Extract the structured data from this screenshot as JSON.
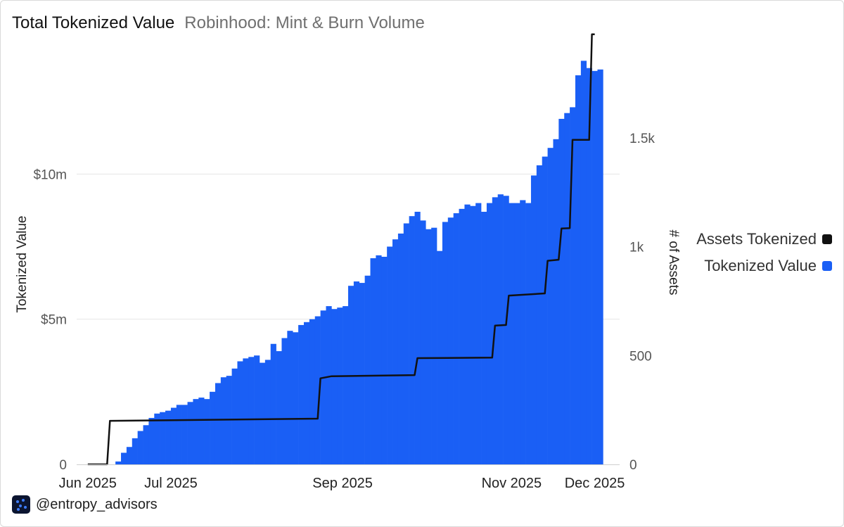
{
  "header": {
    "title": "Total Tokenized Value",
    "subtitle": "Robinhood: Mint & Burn Volume"
  },
  "legend": [
    {
      "label": "Assets Tokenized",
      "color": "#111111"
    },
    {
      "label": "Tokenized Value",
      "color": "#1a5ff5"
    }
  ],
  "footer": {
    "handle": "@entropy_advisors",
    "icon": "entropy-logo-icon"
  },
  "chart_data": {
    "type": "bar",
    "title": "Total Tokenized Value",
    "subtitle": "Robinhood: Mint & Burn Volume",
    "ylabel": "Tokenized Value",
    "y2label": "# of Assets",
    "ylim": [
      0,
      15000000
    ],
    "y2lim": [
      0,
      2000
    ],
    "yticks": [
      {
        "value": 0,
        "label": "0"
      },
      {
        "value": 5000000,
        "label": "$5m"
      },
      {
        "value": 10000000,
        "label": "$10m"
      }
    ],
    "y2ticks": [
      {
        "value": 0,
        "label": "0"
      },
      {
        "value": 500,
        "label": "500"
      },
      {
        "value": 1000,
        "label": "1k"
      },
      {
        "value": 1500,
        "label": "1.5k"
      }
    ],
    "xrange": [
      "2025-05-28",
      "2025-12-10"
    ],
    "xticks": [
      {
        "date": "2025-06-01",
        "label": "Jun 2025"
      },
      {
        "date": "2025-07-01",
        "label": "Jul 2025"
      },
      {
        "date": "2025-09-01",
        "label": "Sep 2025"
      },
      {
        "date": "2025-11-01",
        "label": "Nov 2025"
      },
      {
        "date": "2025-12-01",
        "label": "Dec 2025"
      }
    ],
    "grid": true,
    "legend_position": "right",
    "series": [
      {
        "name": "Tokenized Value",
        "kind": "bar",
        "axis": "left",
        "color": "#1a5ff5",
        "points": [
          [
            "2025-06-12",
            100000
          ],
          [
            "2025-06-14",
            400000
          ],
          [
            "2025-06-16",
            600000
          ],
          [
            "2025-06-18",
            900000
          ],
          [
            "2025-06-20",
            1150000
          ],
          [
            "2025-06-22",
            1350000
          ],
          [
            "2025-06-24",
            1600000
          ],
          [
            "2025-06-26",
            1750000
          ],
          [
            "2025-06-28",
            1800000
          ],
          [
            "2025-06-30",
            1850000
          ],
          [
            "2025-07-02",
            1950000
          ],
          [
            "2025-07-04",
            2050000
          ],
          [
            "2025-07-06",
            2050000
          ],
          [
            "2025-07-08",
            2150000
          ],
          [
            "2025-07-10",
            2250000
          ],
          [
            "2025-07-12",
            2300000
          ],
          [
            "2025-07-14",
            2250000
          ],
          [
            "2025-07-16",
            2500000
          ],
          [
            "2025-07-18",
            2800000
          ],
          [
            "2025-07-20",
            3000000
          ],
          [
            "2025-07-22",
            3050000
          ],
          [
            "2025-07-24",
            3300000
          ],
          [
            "2025-07-26",
            3550000
          ],
          [
            "2025-07-28",
            3650000
          ],
          [
            "2025-07-30",
            3700000
          ],
          [
            "2025-08-01",
            3750000
          ],
          [
            "2025-08-03",
            3500000
          ],
          [
            "2025-08-05",
            3600000
          ],
          [
            "2025-08-07",
            4150000
          ],
          [
            "2025-08-09",
            3900000
          ],
          [
            "2025-08-11",
            4350000
          ],
          [
            "2025-08-13",
            4600000
          ],
          [
            "2025-08-15",
            4550000
          ],
          [
            "2025-08-17",
            4800000
          ],
          [
            "2025-08-19",
            4900000
          ],
          [
            "2025-08-21",
            5000000
          ],
          [
            "2025-08-23",
            5100000
          ],
          [
            "2025-08-25",
            5300000
          ],
          [
            "2025-08-27",
            5450000
          ],
          [
            "2025-08-29",
            5350000
          ],
          [
            "2025-08-31",
            5400000
          ],
          [
            "2025-09-02",
            5450000
          ],
          [
            "2025-09-04",
            6150000
          ],
          [
            "2025-09-06",
            6300000
          ],
          [
            "2025-09-08",
            6250000
          ],
          [
            "2025-09-10",
            6500000
          ],
          [
            "2025-09-12",
            7100000
          ],
          [
            "2025-09-14",
            7200000
          ],
          [
            "2025-09-16",
            7150000
          ],
          [
            "2025-09-18",
            7500000
          ],
          [
            "2025-09-20",
            7750000
          ],
          [
            "2025-09-22",
            7950000
          ],
          [
            "2025-09-24",
            8300000
          ],
          [
            "2025-09-26",
            8550000
          ],
          [
            "2025-09-28",
            8700000
          ],
          [
            "2025-09-30",
            8400000
          ],
          [
            "2025-10-02",
            8100000
          ],
          [
            "2025-10-04",
            8150000
          ],
          [
            "2025-10-06",
            7350000
          ],
          [
            "2025-10-08",
            8350000
          ],
          [
            "2025-10-10",
            8500000
          ],
          [
            "2025-10-12",
            8650000
          ],
          [
            "2025-10-14",
            8800000
          ],
          [
            "2025-10-16",
            8950000
          ],
          [
            "2025-10-18",
            8900000
          ],
          [
            "2025-10-20",
            9000000
          ],
          [
            "2025-10-22",
            8700000
          ],
          [
            "2025-10-24",
            9000000
          ],
          [
            "2025-10-26",
            9200000
          ],
          [
            "2025-10-28",
            9300000
          ],
          [
            "2025-10-30",
            9250000
          ],
          [
            "2025-11-01",
            9000000
          ],
          [
            "2025-11-03",
            9000000
          ],
          [
            "2025-11-05",
            9100000
          ],
          [
            "2025-11-07",
            9000000
          ],
          [
            "2025-11-09",
            9950000
          ],
          [
            "2025-11-11",
            10300000
          ],
          [
            "2025-11-13",
            10600000
          ],
          [
            "2025-11-15",
            10900000
          ],
          [
            "2025-11-17",
            11200000
          ],
          [
            "2025-11-19",
            11900000
          ],
          [
            "2025-11-21",
            12100000
          ],
          [
            "2025-11-23",
            12300000
          ],
          [
            "2025-11-25",
            13400000
          ],
          [
            "2025-11-27",
            13900000
          ],
          [
            "2025-11-29",
            13650000
          ],
          [
            "2025-12-01",
            13550000
          ],
          [
            "2025-12-03",
            13600000
          ]
        ]
      },
      {
        "name": "Assets Tokenized",
        "kind": "step",
        "axis": "right",
        "color": "#111111",
        "points": [
          [
            "2025-06-01",
            0
          ],
          [
            "2025-06-08",
            0
          ],
          [
            "2025-06-09",
            200
          ],
          [
            "2025-08-23",
            210
          ],
          [
            "2025-08-24",
            395
          ],
          [
            "2025-08-28",
            405
          ],
          [
            "2025-09-27",
            410
          ],
          [
            "2025-09-28",
            488
          ],
          [
            "2025-10-25",
            490
          ],
          [
            "2025-10-26",
            637
          ],
          [
            "2025-10-30",
            640
          ],
          [
            "2025-10-31",
            775
          ],
          [
            "2025-11-13",
            785
          ],
          [
            "2025-11-14",
            935
          ],
          [
            "2025-11-18",
            940
          ],
          [
            "2025-11-19",
            1083
          ],
          [
            "2025-11-22",
            1085
          ],
          [
            "2025-11-23",
            1490
          ],
          [
            "2025-11-29",
            1490
          ],
          [
            "2025-11-30",
            1975
          ],
          [
            "2025-12-01",
            1975
          ]
        ]
      }
    ]
  }
}
